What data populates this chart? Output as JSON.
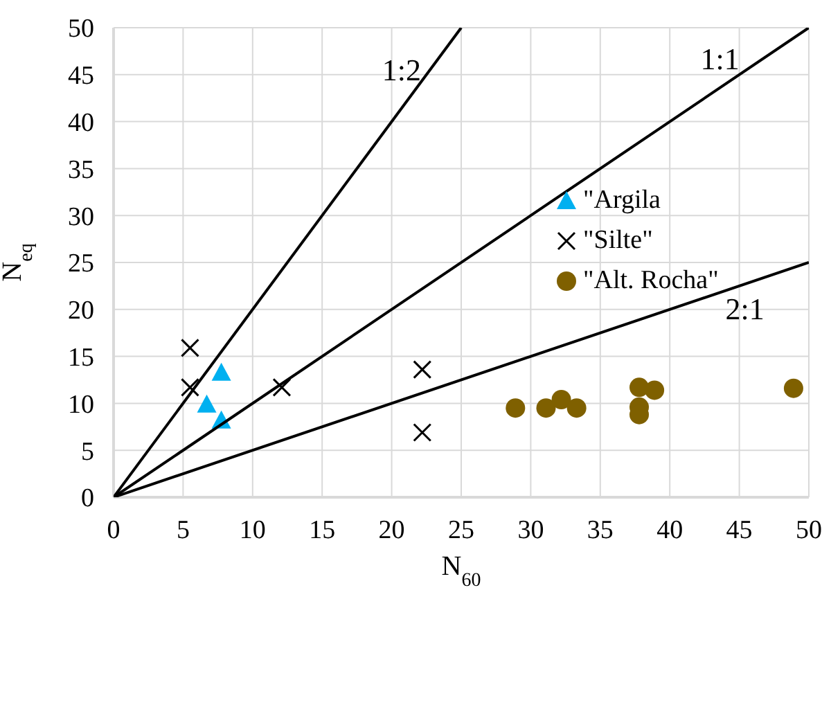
{
  "chart_data": {
    "type": "scatter",
    "xlabel": "N$_{60}$",
    "ylabel": "N$_{eq}$",
    "xlim": [
      0,
      50
    ],
    "ylim": [
      0,
      50
    ],
    "xticks": [
      0,
      5,
      10,
      15,
      20,
      25,
      30,
      35,
      40,
      45,
      50
    ],
    "yticks": [
      0,
      5,
      10,
      15,
      20,
      25,
      30,
      35,
      40,
      45,
      50
    ],
    "grid": true,
    "legend": "right",
    "series": [
      {
        "name": "\"Argila",
        "color": "#00b0f0",
        "marker": "triangle",
        "x": [
          7.75,
          6.7,
          7.75
        ],
        "values": [
          13.3,
          9.9,
          8.2
        ]
      },
      {
        "name": "\"Silte\"",
        "color": "#000000",
        "marker": "cross",
        "x": [
          5.5,
          5.5,
          12.1,
          22.2,
          22.2
        ],
        "values": [
          15.9,
          11.7,
          11.7,
          13.6,
          6.9
        ]
      },
      {
        "name": "\"Alt. Rocha\"",
        "color": "#7f6000",
        "marker": "circle",
        "x": [
          28.9,
          31.1,
          32.2,
          33.3,
          37.8,
          38.9,
          37.8,
          37.8,
          48.9
        ],
        "values": [
          9.5,
          9.5,
          10.4,
          9.5,
          11.7,
          11.4,
          9.6,
          8.8,
          11.6
        ]
      },
      {
        "type": "line",
        "color": "#000000",
        "x": [
          0,
          25
        ],
        "values": [
          0,
          50
        ]
      },
      {
        "type": "line",
        "color": "#000000",
        "x": [
          0,
          50
        ],
        "values": [
          0,
          50
        ]
      },
      {
        "type": "line",
        "color": "#000000",
        "x": [
          0,
          50
        ],
        "values": [
          0,
          25
        ]
      }
    ],
    "annotations": [
      "1:2",
      "1:1",
      "2:1"
    ]
  }
}
